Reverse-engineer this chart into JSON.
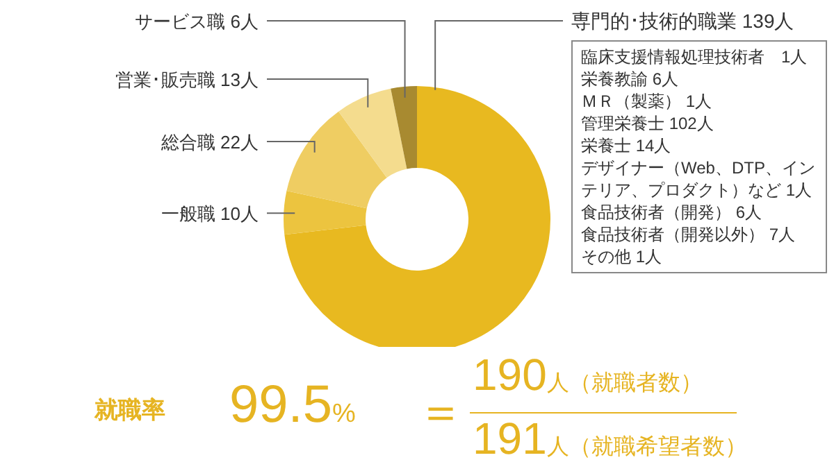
{
  "chart_data": [
    {
      "type": "donut",
      "categories": [
        "専門的･技術的職業",
        "一般職",
        "総合職",
        "営業･販売職",
        "サービス職"
      ],
      "values": [
        139,
        10,
        22,
        13,
        6
      ],
      "value_labels": [
        "139人",
        "10人",
        "22人",
        "13人",
        "6人"
      ],
      "colors": [
        "#e8b920",
        "#ecc43f",
        "#efcd62",
        "#f4dc8e",
        "#a88a30"
      ],
      "annotations": [
        "臨床支援情報処理技術者　1人",
        "栄養教諭 6人",
        "ＭＲ（製薬） 1人",
        "管理栄養士 102人",
        "栄養士 14人",
        "デザイナー（Web、DTP、インテリア、プロダクト）など 1人",
        "食品技術者（開発） 6人",
        "食品技術者（開発以外） 7人",
        "その他 1人"
      ]
    },
    {
      "type": "other",
      "annotations": [
        "就職率",
        "99.5%",
        "＝",
        "190人（就職者数）",
        "191人（就職希望者数）"
      ]
    }
  ]
}
